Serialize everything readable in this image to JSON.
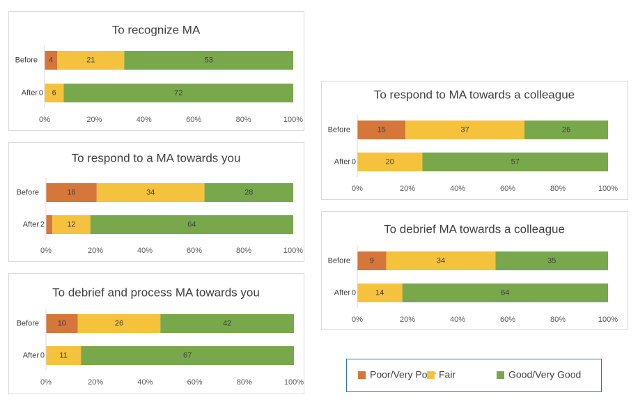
{
  "chart_data": [
    {
      "type": "bar",
      "orientation": "horizontal",
      "stacked": "percent",
      "title": "To recognize MA",
      "categories": [
        "Before",
        "After"
      ],
      "series": [
        {
          "values": [
            4,
            0
          ]
        },
        {
          "values": [
            21,
            6
          ]
        },
        {
          "values": [
            53,
            72
          ]
        }
      ],
      "xlim": [
        0,
        100
      ],
      "xticks": [
        {
          "value": 0,
          "label": "0%"
        },
        {
          "value": 20,
          "label": "20%"
        },
        {
          "value": 40,
          "label": "40%"
        },
        {
          "value": 60,
          "label": "60%"
        },
        {
          "value": 80,
          "label": "80%"
        },
        {
          "value": 100,
          "label": "100%"
        }
      ]
    },
    {
      "type": "bar",
      "orientation": "horizontal",
      "stacked": "percent",
      "title": "To respond to a MA towards you",
      "categories": [
        "Before",
        "After"
      ],
      "series": [
        {
          "values": [
            16,
            2
          ]
        },
        {
          "values": [
            34,
            12
          ]
        },
        {
          "values": [
            28,
            64
          ]
        }
      ],
      "xlim": [
        0,
        100
      ],
      "xticks": [
        {
          "value": 0,
          "label": "0%"
        },
        {
          "value": 20,
          "label": "20%"
        },
        {
          "value": 40,
          "label": "40%"
        },
        {
          "value": 60,
          "label": "60%"
        },
        {
          "value": 80,
          "label": "80%"
        },
        {
          "value": 100,
          "label": "100%"
        }
      ]
    },
    {
      "type": "bar",
      "orientation": "horizontal",
      "stacked": "percent",
      "title": "To debrief and process MA towards you",
      "categories": [
        "Before",
        "After"
      ],
      "series": [
        {
          "values": [
            10,
            0
          ]
        },
        {
          "values": [
            26,
            11
          ]
        },
        {
          "values": [
            42,
            67
          ]
        }
      ],
      "xlim": [
        0,
        100
      ],
      "xticks": [
        {
          "value": 0,
          "label": "0%"
        },
        {
          "value": 20,
          "label": "20%"
        },
        {
          "value": 40,
          "label": "40%"
        },
        {
          "value": 60,
          "label": "60%"
        },
        {
          "value": 80,
          "label": "80%"
        },
        {
          "value": 100,
          "label": "100%"
        }
      ]
    },
    {
      "type": "bar",
      "orientation": "horizontal",
      "stacked": "percent",
      "title": "To respond to MA towards a colleague",
      "categories": [
        "Before",
        "After"
      ],
      "series": [
        {
          "values": [
            15,
            0
          ]
        },
        {
          "values": [
            37,
            20
          ]
        },
        {
          "values": [
            26,
            57
          ]
        }
      ],
      "xlim": [
        0,
        100
      ],
      "xticks": [
        {
          "value": 0,
          "label": "0%"
        },
        {
          "value": 20,
          "label": "20%"
        },
        {
          "value": 40,
          "label": "40%"
        },
        {
          "value": 60,
          "label": "60%"
        },
        {
          "value": 80,
          "label": "80%"
        },
        {
          "value": 100,
          "label": "100%"
        }
      ]
    },
    {
      "type": "bar",
      "orientation": "horizontal",
      "stacked": "percent",
      "title": "To debrief MA towards a colleague",
      "categories": [
        "Before",
        "After"
      ],
      "series": [
        {
          "values": [
            9,
            0
          ]
        },
        {
          "values": [
            34,
            14
          ]
        },
        {
          "values": [
            35,
            64
          ]
        }
      ],
      "xlim": [
        0,
        100
      ],
      "xticks": [
        {
          "value": 0,
          "label": "0%"
        },
        {
          "value": 20,
          "label": "20%"
        },
        {
          "value": 40,
          "label": "40%"
        },
        {
          "value": 60,
          "label": "60%"
        },
        {
          "value": 80,
          "label": "80%"
        },
        {
          "value": 100,
          "label": "100%"
        }
      ]
    }
  ],
  "legend": {
    "series": [
      {
        "name": "Poor/Very Poor",
        "color": "#d5763a"
      },
      {
        "name": "Fair",
        "color": "#f5c23e"
      },
      {
        "name": "Good/Very Good",
        "color": "#78a84b"
      }
    ]
  }
}
